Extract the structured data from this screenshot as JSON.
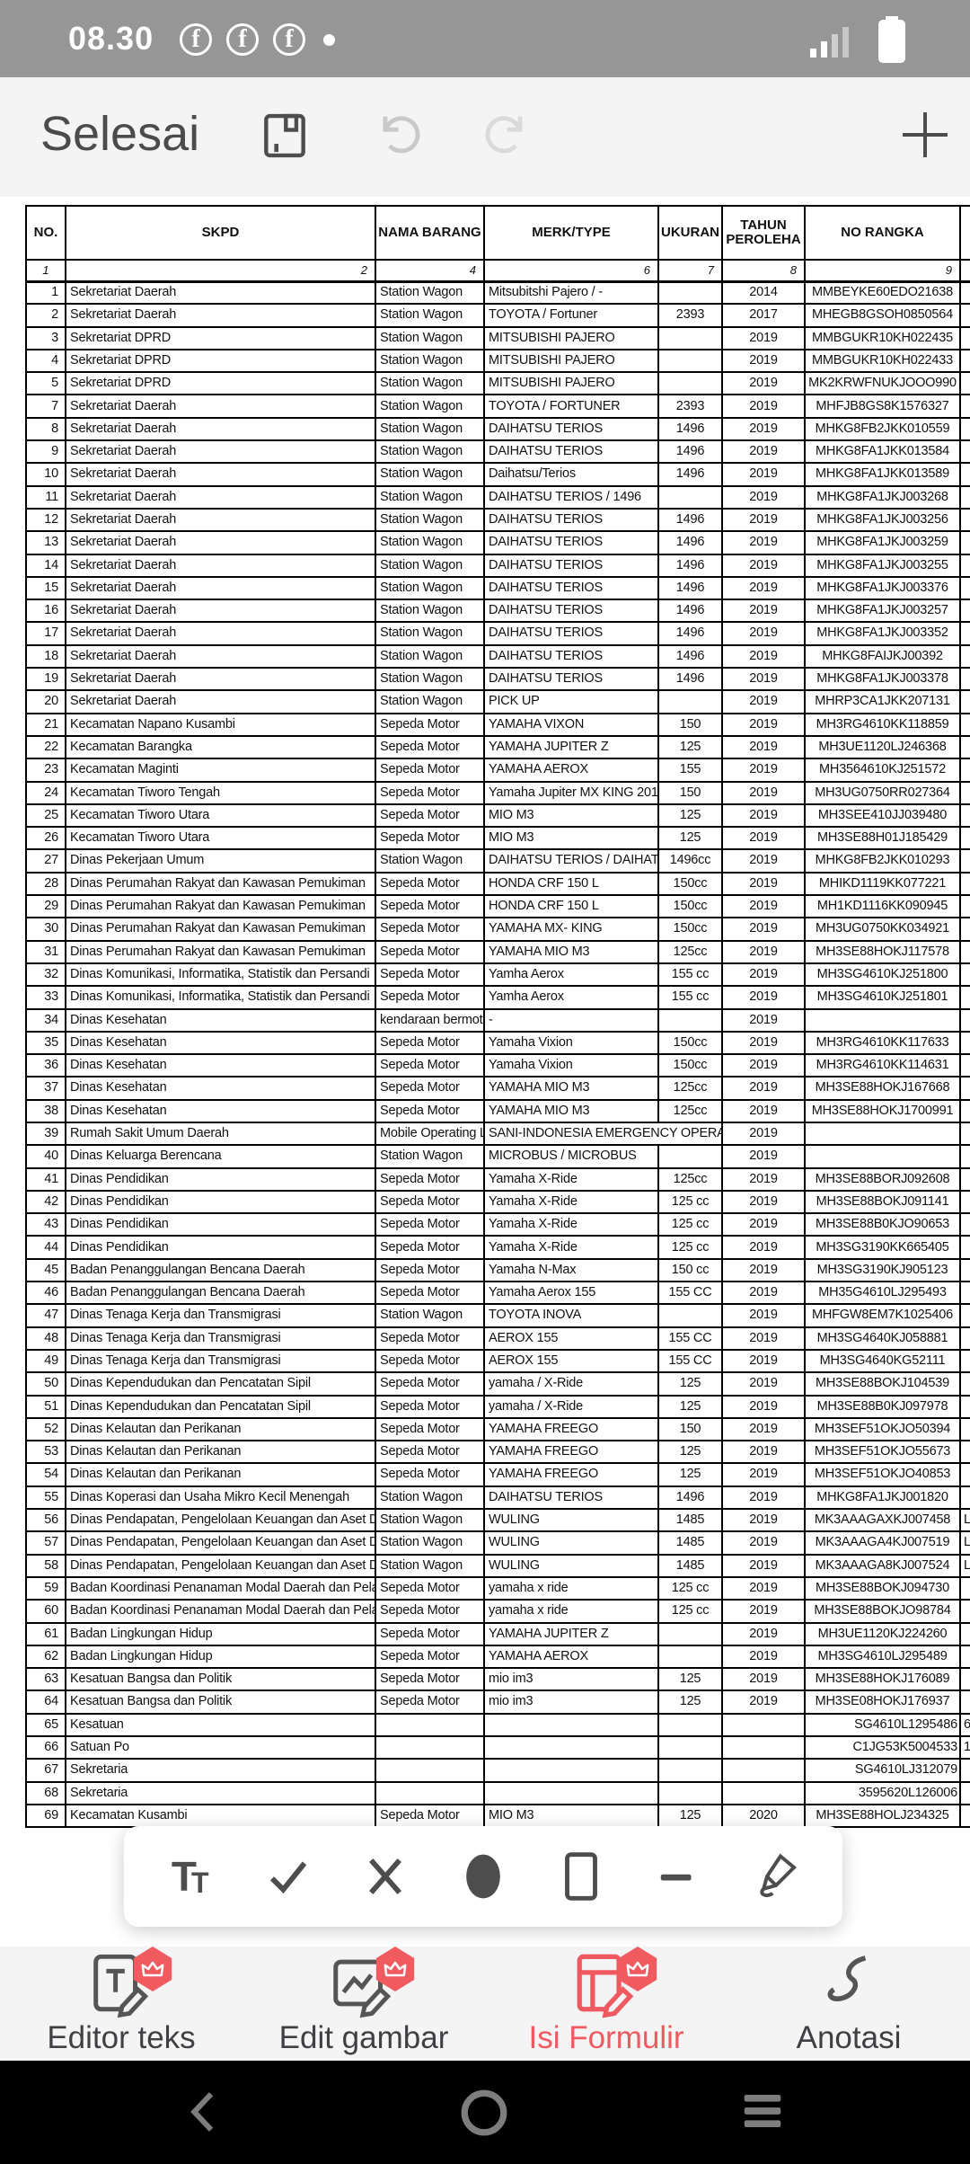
{
  "colors": {
    "accent_red": "#f15b60",
    "status_gray": "#969696",
    "bar_bg": "#f4f4f5",
    "ink": "#4b4b4b"
  },
  "status_bar": {
    "time": "08.30",
    "notification_icons": [
      "facebook-icon",
      "facebook-icon",
      "facebook-icon",
      "dot-icon"
    ],
    "right_icons": [
      "signal-icon",
      "battery-icon"
    ]
  },
  "app_bar": {
    "done_label": "Selesai",
    "icons": [
      "save-icon",
      "undo-icon",
      "redo-icon",
      "add-icon"
    ]
  },
  "document": {
    "table": {
      "headers": [
        "NO.",
        "SKPD",
        "NAMA BARANG",
        "MERK/TYPE",
        "UKURAN",
        "TAHUN PEROLEHA",
        "NO RANGKA",
        ""
      ],
      "index_row": [
        "1",
        "2",
        "4",
        "6",
        "7",
        "8",
        "9",
        ""
      ],
      "rows": [
        [
          "1",
          "Sekretariat Daerah",
          "Station Wagon",
          "Mitsubitshi Pajero / -",
          "",
          "2014",
          "MMBEYKE60EDO21638",
          ""
        ],
        [
          "2",
          "Sekretariat Daerah",
          "Station Wagon",
          "TOYOTA / Fortuner",
          "2393",
          "2017",
          "MHEGB8GSOH0850564",
          ""
        ],
        [
          "3",
          "Sekretariat DPRD",
          "Station Wagon",
          "MITSUBISHI PAJERO",
          "",
          "2019",
          "MMBGUKR10KH022435",
          ""
        ],
        [
          "4",
          "Sekretariat DPRD",
          "Station Wagon",
          "MITSUBISHI PAJERO",
          "",
          "2019",
          "MMBGUKR10KH022433",
          ""
        ],
        [
          "5",
          "Sekretariat DPRD",
          "Station Wagon",
          "MITSUBISHI PAJERO",
          "",
          "2019",
          "MK2KRWFNUKJOOO990",
          ""
        ],
        [
          "7",
          "Sekretariat Daerah",
          "Station Wagon",
          "TOYOTA / FORTUNER",
          "2393",
          "2019",
          "MHFJB8GS8K1576327",
          ""
        ],
        [
          "8",
          "Sekretariat Daerah",
          "Station Wagon",
          "DAIHATSU TERIOS",
          "1496",
          "2019",
          "MHKG8FB2JKK010559",
          ""
        ],
        [
          "9",
          "Sekretariat Daerah",
          "Station Wagon",
          "DAIHATSU TERIOS",
          "1496",
          "2019",
          "MHKG8FA1JKK013584",
          ""
        ],
        [
          "10",
          "Sekretariat Daerah",
          "Station Wagon",
          "Daihatsu/Terios",
          "1496",
          "2019",
          "MHKG8FA1JKK013589",
          ""
        ],
        [
          "11",
          "Sekretariat Daerah",
          "Station Wagon",
          "DAIHATSU TERIOS / 1496",
          "",
          "2019",
          "MHKG8FA1JKJ003268",
          ""
        ],
        [
          "12",
          "Sekretariat Daerah",
          "Station Wagon",
          "DAIHATSU TERIOS",
          "1496",
          "2019",
          "MHKG8FA1JKJ003256",
          ""
        ],
        [
          "13",
          "Sekretariat Daerah",
          "Station Wagon",
          "DAIHATSU TERIOS",
          "1496",
          "2019",
          "MHKG8FA1JKJ003259",
          ""
        ],
        [
          "14",
          "Sekretariat Daerah",
          "Station Wagon",
          "DAIHATSU TERIOS",
          "1496",
          "2019",
          "MHKG8FA1JKJ003255",
          ""
        ],
        [
          "15",
          "Sekretariat Daerah",
          "Station Wagon",
          "DAIHATSU TERIOS",
          "1496",
          "2019",
          "MHKG8FA1JKJ003376",
          ""
        ],
        [
          "16",
          "Sekretariat Daerah",
          "Station Wagon",
          "DAIHATSU TERIOS",
          "1496",
          "2019",
          "MHKG8FA1JKJ003257",
          ""
        ],
        [
          "17",
          "Sekretariat Daerah",
          "Station Wagon",
          "DAIHATSU TERIOS",
          "1496",
          "2019",
          "MHKG8FA1JKJ003352",
          ""
        ],
        [
          "18",
          "Sekretariat Daerah",
          "Station Wagon",
          "DAIHATSU TERIOS",
          "1496",
          "2019",
          "MHKG8FAIJKJ00392",
          ""
        ],
        [
          "19",
          "Sekretariat Daerah",
          "Station Wagon",
          "DAIHATSU TERIOS",
          "1496",
          "2019",
          "MHKG8FA1JKJ003378",
          ""
        ],
        [
          "20",
          "Sekretariat Daerah",
          "Station Wagon",
          "PICK UP",
          "",
          "2019",
          "MHRP3CA1JKK207131",
          ""
        ],
        [
          "21",
          "Kecamatan Napano Kusambi",
          "Sepeda Motor",
          "YAMAHA VIXON",
          "150",
          "2019",
          "MH3RG4610KK118859",
          ""
        ],
        [
          "22",
          "Kecamatan Barangka",
          "Sepeda Motor",
          "YAMAHA JUPITER Z",
          "125",
          "2019",
          "MH3UE1120LJ246368",
          ""
        ],
        [
          "23",
          "Kecamatan Maginti",
          "Sepeda Motor",
          "YAMAHA AEROX",
          "155",
          "2019",
          "MH3564610KJ251572",
          ""
        ],
        [
          "24",
          "Kecamatan Tiworo Tengah",
          "Sepeda Motor",
          "Yamaha Jupiter MX KING 201",
          "150",
          "2019",
          "MH3UG0750RR027364",
          ""
        ],
        [
          "25",
          "Kecamatan Tiworo Utara",
          "Sepeda Motor",
          "MIO M3",
          "125",
          "2019",
          "MH3SEE410JJ039480",
          ""
        ],
        [
          "26",
          "Kecamatan Tiworo Utara",
          "Sepeda Motor",
          "MIO M3",
          "125",
          "2019",
          "MH3SE88H01J185429",
          ""
        ],
        [
          "27",
          "Dinas Pekerjaan Umum",
          "Station Wagon",
          "DAIHATSU TERIOS / DAIHAT",
          "1496cc",
          "2019",
          "MHKG8FB2JKK010293",
          ""
        ],
        [
          "28",
          "Dinas Perumahan Rakyat dan Kawasan Pemukiman",
          "Sepeda Motor",
          "HONDA CRF 150 L",
          "150cc",
          "2019",
          "MHIKD1119KK077221",
          ""
        ],
        [
          "29",
          "Dinas Perumahan Rakyat dan Kawasan Pemukiman",
          "Sepeda Motor",
          "HONDA CRF 150 L",
          "150cc",
          "2019",
          "MH1KD1116KK090945",
          ""
        ],
        [
          "30",
          "Dinas Perumahan Rakyat dan Kawasan Pemukiman",
          "Sepeda Motor",
          "YAMAHA MX- KING",
          "150cc",
          "2019",
          "MH3UG0750KK034921",
          ""
        ],
        [
          "31",
          "Dinas Perumahan Rakyat dan Kawasan Pemukiman",
          "Sepeda Motor",
          "YAMAHA MIO M3",
          "125cc",
          "2019",
          "MH3SE88HOKJ117578",
          ""
        ],
        [
          "32",
          "Dinas Komunikasi,  Informatika, Statistik dan Persandi",
          "Sepeda Motor",
          "Yamha Aerox",
          "155 cc",
          "2019",
          "MH3SG4610KJ251800",
          ""
        ],
        [
          "33",
          "Dinas Komunikasi,  Informatika, Statistik dan Persandi",
          "Sepeda Motor",
          "Yamha Aerox",
          "155 cc",
          "2019",
          "MH3SG4610KJ251801",
          ""
        ],
        [
          "34",
          "Dinas Kesehatan",
          "kendaraan bermoto",
          "-",
          "",
          "2019",
          "",
          ""
        ],
        [
          "35",
          "Dinas Kesehatan",
          "Sepeda Motor",
          "Yamaha Vixion",
          "150cc",
          "2019",
          "MH3RG4610KK117633",
          ""
        ],
        [
          "36",
          "Dinas Kesehatan",
          "Sepeda Motor",
          "Yamaha Vixion",
          "150cc",
          "2019",
          "MH3RG4610KK114631",
          ""
        ],
        [
          "37",
          "Dinas Kesehatan",
          "Sepeda Motor",
          "YAMAHA MIO M3",
          "125cc",
          "2019",
          "MH3SE88HOKJ167668",
          ""
        ],
        [
          "38",
          "Dinas Kesehatan",
          "Sepeda Motor",
          "YAMAHA MIO M3",
          "125cc",
          "2019",
          "MH3SE88HOKJ1700991",
          ""
        ],
        [
          "39",
          "Rumah Sakit Umum Daerah",
          "Mobile Operating L",
          "SANI-INDONESIA EMERGENCY OPERA",
          "",
          "2019",
          "",
          "",
          "merge"
        ],
        [
          "40",
          "Dinas Keluarga Berencana",
          "Station Wagon",
          "MICROBUS / MICROBUS",
          "",
          "2019",
          "",
          ""
        ],
        [
          "41",
          "Dinas Pendidikan",
          "Sepeda Motor",
          "Yamaha X-Ride",
          "125cc",
          "2019",
          "MH3SE88BORJ092608",
          ""
        ],
        [
          "42",
          "Dinas Pendidikan",
          "Sepeda Motor",
          "Yamaha X-Ride",
          "125 cc",
          "2019",
          "MH3SE88BOKJ091141",
          ""
        ],
        [
          "43",
          "Dinas Pendidikan",
          "Sepeda Motor",
          "Yamaha X-Ride",
          "125 cc",
          "2019",
          "MH3SE88B0KJO90653",
          ""
        ],
        [
          "44",
          "Dinas Pendidikan",
          "Sepeda Motor",
          "Yamaha X-Ride",
          "125 cc",
          "2019",
          "MH3SG3190KK665405",
          ""
        ],
        [
          "45",
          "Badan Penanggulangan Bencana Daerah",
          "Sepeda Motor",
          "Yamaha N-Max",
          "150 cc",
          "2019",
          "MH3SG3190KJ905123",
          ""
        ],
        [
          "46",
          "Badan Penanggulangan Bencana Daerah",
          "Sepeda Motor",
          "Yamaha Aerox 155",
          "155 CC",
          "2019",
          "MH35G4610LJ295493",
          ""
        ],
        [
          "47",
          "Dinas Tenaga Kerja dan Transmigrasi",
          "Station Wagon",
          "TOYOTA INOVA",
          "",
          "2019",
          "MHFGW8EM7K1025406",
          ""
        ],
        [
          "48",
          "Dinas Tenaga Kerja dan Transmigrasi",
          "Sepeda Motor",
          "AEROX 155",
          "155 CC",
          "2019",
          "MH3SG4640KJ058881",
          ""
        ],
        [
          "49",
          "Dinas Tenaga Kerja dan Transmigrasi",
          "Sepeda Motor",
          "AEROX 155",
          "155 CC",
          "2019",
          "MH3SG4640KG52111",
          ""
        ],
        [
          "50",
          "Dinas Kependudukan dan Pencatatan Sipil",
          "Sepeda Motor",
          "yamaha /  X-Ride",
          "125",
          "2019",
          "MH3SE88BOKJ104539",
          ""
        ],
        [
          "51",
          "Dinas Kependudukan dan Pencatatan Sipil",
          "Sepeda Motor",
          "yamaha / X-Ride",
          "125",
          "2019",
          "MH3SE88B0KJ097978",
          ""
        ],
        [
          "52",
          "Dinas Kelautan dan Perikanan",
          "Sepeda Motor",
          "YAMAHA FREEGO",
          "150",
          "2019",
          "MH3SEF51OKJO50394",
          ""
        ],
        [
          "53",
          "Dinas Kelautan dan Perikanan",
          "Sepeda Motor",
          "YAMAHA FREEGO",
          "125",
          "2019",
          "MH3SEF51OKJO55673",
          ""
        ],
        [
          "54",
          "Dinas Kelautan dan Perikanan",
          "Sepeda Motor",
          "YAMAHA FREEGO",
          "125",
          "2019",
          "MH3SEF51OKJO40853",
          ""
        ],
        [
          "55",
          "Dinas Koperasi dan Usaha Mikro Kecil Menengah",
          "Station Wagon",
          "DAIHATSU TERIOS",
          "1496",
          "2019",
          "MHKG8FA1JKJ001820",
          ""
        ],
        [
          "56",
          "Dinas Pendapatan, Pengelolaan Keuangan dan Aset D",
          "Station Wagon",
          "WULING",
          "1485",
          "2019",
          "MK3AAAGAXKJ007458",
          "L"
        ],
        [
          "57",
          "Dinas Pendapatan, Pengelolaan Keuangan dan Aset D",
          "Station Wagon",
          "WULING",
          "1485",
          "2019",
          "MK3AAAGA4KJ007519",
          "L1"
        ],
        [
          "58",
          "Dinas Pendapatan, Pengelolaan Keuangan dan Aset D",
          "Station Wagon",
          "WULING",
          "1485",
          "2019",
          "MK3AAAGA8KJ007524",
          "L"
        ],
        [
          "59",
          "Badan Koordinasi Penanaman Modal Daerah dan Pela",
          "Sepeda Motor",
          "yamaha x ride",
          "125 cc",
          "2019",
          "MH3SE88BOKJ094730",
          ""
        ],
        [
          "60",
          "Badan Koordinasi Penanaman Modal Daerah dan Pela",
          "Sepeda Motor",
          "yamaha x ride",
          "125 cc",
          "2019",
          "MH3SE88BOKJO98784",
          ""
        ],
        [
          "61",
          "Badan Lingkungan Hidup",
          "Sepeda Motor",
          "YAMAHA JUPITER Z",
          "",
          "2019",
          "MH3UE1120KJ224260",
          ""
        ],
        [
          "62",
          "Badan Lingkungan Hidup",
          "Sepeda Motor",
          "YAMAHA AEROX",
          "",
          "2019",
          "MH3SG4610LJ295489",
          ""
        ],
        [
          "63",
          "Kesatuan Bangsa dan Politik",
          "Sepeda Motor",
          "mio im3",
          "125",
          "2019",
          "MH3SE88HOKJ176089",
          ""
        ],
        [
          "64",
          "Kesatuan Bangsa dan Politik",
          "Sepeda Motor",
          "mio im3",
          "125",
          "2019",
          "MH3SE08HOKJ176937",
          ""
        ],
        [
          "65",
          "Kesatuan",
          "",
          "",
          "",
          "",
          "SG4610L1295486",
          "6",
          "frag"
        ],
        [
          "66",
          "Satuan Po",
          "",
          "",
          "",
          "",
          "C1JG53K5004533",
          "1",
          "frag"
        ],
        [
          "67",
          "Sekretaria",
          "",
          "",
          "",
          "",
          "SG4610LJ312079",
          "",
          "frag"
        ],
        [
          "68",
          "Sekretaria",
          "",
          "",
          "",
          "",
          "3595620L126006",
          "",
          "frag"
        ],
        [
          "69",
          "Kecamatan Kusambi",
          "Sepeda Motor",
          "MIO M3",
          "125",
          "2020",
          "MH3SE88HOLJ234325",
          ""
        ]
      ]
    }
  },
  "floating_toolbar": {
    "tools": [
      "text-tool",
      "check-tool",
      "cross-tool",
      "ellipse-tool",
      "rectangle-tool",
      "line-tool",
      "signature-tool"
    ]
  },
  "bottom_nav": {
    "items": [
      {
        "label": "Editor teks",
        "active": false,
        "premium_badge": true
      },
      {
        "label": "Edit gambar",
        "active": false,
        "premium_badge": true
      },
      {
        "label": "Isi Formulir",
        "active": true,
        "premium_badge": true
      },
      {
        "label": "Anotasi",
        "active": false,
        "premium_badge": false
      }
    ]
  },
  "android_nav": {
    "icons": [
      "back-icon",
      "home-icon",
      "recents-icon"
    ]
  }
}
